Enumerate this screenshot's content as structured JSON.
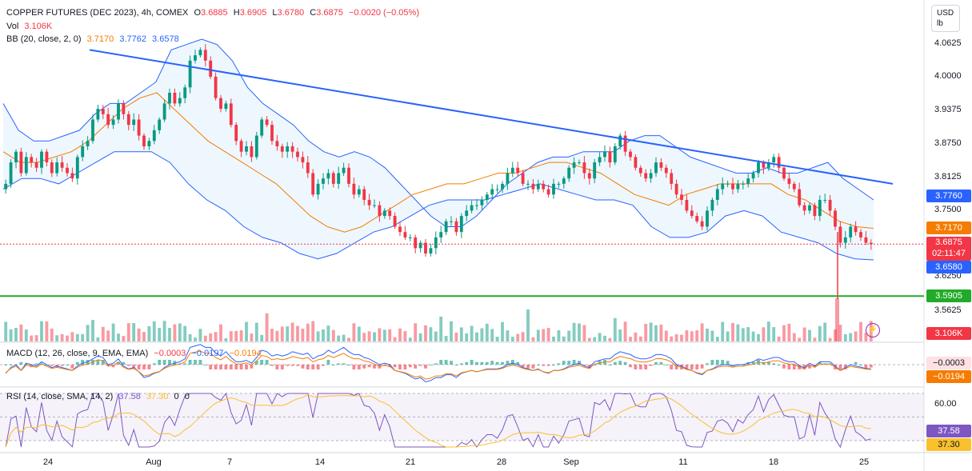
{
  "header": {
    "symbol": "COPPER FUTURES (DEC 2023), 4h, COMEX",
    "open_label": "O",
    "open": "3.6885",
    "high_label": "H",
    "high": "3.6905",
    "low_label": "L",
    "low": "3.6780",
    "close_label": "C",
    "close": "3.6875",
    "change": "−0.0020 (−0.05%)",
    "vol_label": "Vol",
    "vol": "3.106K",
    "bb_label": "BB (20, close, 2, 0)",
    "bb_basis": "3.7170",
    "bb_upper": "3.7762",
    "bb_lower": "3.6578"
  },
  "macd": {
    "label": "MACD (12, 26, close, 9, EMA, EMA)",
    "hist": "−0.0003",
    "macd": "−0.0197",
    "signal": "−0.0194"
  },
  "rsi": {
    "label": "RSI (14, close, SMA, 14, 2)",
    "value": "37.58",
    "ma": "37.30",
    "d1": "0",
    "d2": "0"
  },
  "unit": {
    "currency": "USD",
    "measure": "lb"
  },
  "price_axis": [
    "4.0625",
    "4.0000",
    "3.9375",
    "3.8750",
    "3.8125",
    "3.7500",
    "3.6250",
    "3.5625"
  ],
  "rsi_axis": [
    "60.00"
  ],
  "badges": {
    "upper": "3.7760",
    "basis": "3.7170",
    "price": "3.6875",
    "countdown": "02:11:47",
    "lower": "3.6580",
    "support": "3.5905",
    "volume": "3.106K",
    "macd_hist": "−0.0003",
    "macd_signal": "−0.0194",
    "rsi_value": "37.58",
    "rsi_ma": "37.30"
  },
  "x_axis": [
    "24",
    "Aug",
    "7",
    "14",
    "21",
    "28",
    "Sep",
    "11",
    "18",
    "25"
  ],
  "colors": {
    "up": "#089981",
    "down": "#f23645",
    "bb_basis": "#f57c00",
    "bb_band": "#2962ff",
    "trendline": "#2962ff",
    "support": "#22ab2a",
    "rsi": "#7e57c2",
    "rsi_ma": "#fbc02d"
  },
  "chart_data": {
    "type": "candlestick",
    "timeframe": "4h",
    "ylim": [
      3.55,
      4.08
    ],
    "price_series_close": [
      3.8,
      3.84,
      3.86,
      3.82,
      3.85,
      3.84,
      3.83,
      3.86,
      3.84,
      3.82,
      3.84,
      3.83,
      3.82,
      3.81,
      3.85,
      3.87,
      3.88,
      3.92,
      3.94,
      3.93,
      3.91,
      3.92,
      3.95,
      3.93,
      3.91,
      3.92,
      3.89,
      3.87,
      3.88,
      3.9,
      3.92,
      3.95,
      3.97,
      3.95,
      3.96,
      3.98,
      4.03,
      4.04,
      4.05,
      4.03,
      4.0,
      3.96,
      3.94,
      3.95,
      3.91,
      3.88,
      3.86,
      3.87,
      3.85,
      3.89,
      3.92,
      3.91,
      3.88,
      3.87,
      3.86,
      3.87,
      3.86,
      3.85,
      3.84,
      3.82,
      3.78,
      3.8,
      3.81,
      3.82,
      3.8,
      3.82,
      3.83,
      3.8,
      3.78,
      3.79,
      3.77,
      3.76,
      3.76,
      3.74,
      3.75,
      3.74,
      3.72,
      3.71,
      3.7,
      3.7,
      3.68,
      3.69,
      3.67,
      3.68,
      3.7,
      3.71,
      3.73,
      3.73,
      3.71,
      3.74,
      3.75,
      3.76,
      3.76,
      3.77,
      3.78,
      3.79,
      3.79,
      3.8,
      3.82,
      3.83,
      3.82,
      3.8,
      3.8,
      3.79,
      3.8,
      3.79,
      3.78,
      3.8,
      3.8,
      3.81,
      3.83,
      3.84,
      3.84,
      3.82,
      3.81,
      3.84,
      3.85,
      3.86,
      3.84,
      3.87,
      3.89,
      3.86,
      3.85,
      3.83,
      3.82,
      3.81,
      3.82,
      3.84,
      3.83,
      3.82,
      3.8,
      3.78,
      3.77,
      3.75,
      3.74,
      3.73,
      3.72,
      3.75,
      3.77,
      3.79,
      3.8,
      3.8,
      3.79,
      3.8,
      3.8,
      3.81,
      3.82,
      3.84,
      3.83,
      3.84,
      3.85,
      3.83,
      3.81,
      3.8,
      3.79,
      3.76,
      3.75,
      3.76,
      3.74,
      3.77,
      3.77,
      3.75,
      3.72,
      3.69,
      3.7,
      3.72,
      3.71,
      3.7,
      3.69,
      3.6875
    ],
    "bb_upper": [
      3.95,
      3.9,
      3.88,
      3.88,
      3.89,
      3.9,
      3.93,
      3.95,
      3.95,
      3.97,
      3.99,
      4.05,
      4.06,
      4.07,
      4.06,
      4.03,
      3.98,
      3.95,
      3.93,
      3.91,
      3.88,
      3.86,
      3.85,
      3.86,
      3.85,
      3.83,
      3.8,
      3.77,
      3.74,
      3.72,
      3.72,
      3.74,
      3.77,
      3.8,
      3.82,
      3.84,
      3.85,
      3.85,
      3.86,
      3.86,
      3.86,
      3.88,
      3.89,
      3.89,
      3.87,
      3.85,
      3.84,
      3.83,
      3.82,
      3.82,
      3.83,
      3.82,
      3.82,
      3.83,
      3.84,
      3.81,
      3.79,
      3.77
    ],
    "bb_basis": [
      3.86,
      3.84,
      3.84,
      3.85,
      3.86,
      3.88,
      3.91,
      3.94,
      3.96,
      3.97,
      3.94,
      3.91,
      3.88,
      3.86,
      3.84,
      3.82,
      3.8,
      3.77,
      3.74,
      3.72,
      3.71,
      3.72,
      3.74,
      3.76,
      3.78,
      3.79,
      3.8,
      3.8,
      3.81,
      3.82,
      3.82,
      3.83,
      3.84,
      3.84,
      3.83,
      3.82,
      3.8,
      3.78,
      3.77,
      3.76,
      3.78,
      3.79,
      3.8,
      3.8,
      3.8,
      3.8,
      3.78,
      3.77,
      3.75,
      3.73,
      3.72,
      3.717
    ],
    "bb_lower": [
      3.79,
      3.81,
      3.81,
      3.8,
      3.82,
      3.84,
      3.86,
      3.86,
      3.86,
      3.84,
      3.8,
      3.77,
      3.75,
      3.72,
      3.7,
      3.69,
      3.67,
      3.66,
      3.67,
      3.69,
      3.71,
      3.72,
      3.74,
      3.76,
      3.77,
      3.77,
      3.77,
      3.78,
      3.79,
      3.8,
      3.79,
      3.78,
      3.77,
      3.77,
      3.76,
      3.72,
      3.7,
      3.7,
      3.71,
      3.74,
      3.75,
      3.74,
      3.71,
      3.7,
      3.69,
      3.67,
      3.66,
      3.658
    ],
    "trendline": {
      "start": 4.05,
      "end": 3.8
    },
    "support_level": 3.5905
  }
}
